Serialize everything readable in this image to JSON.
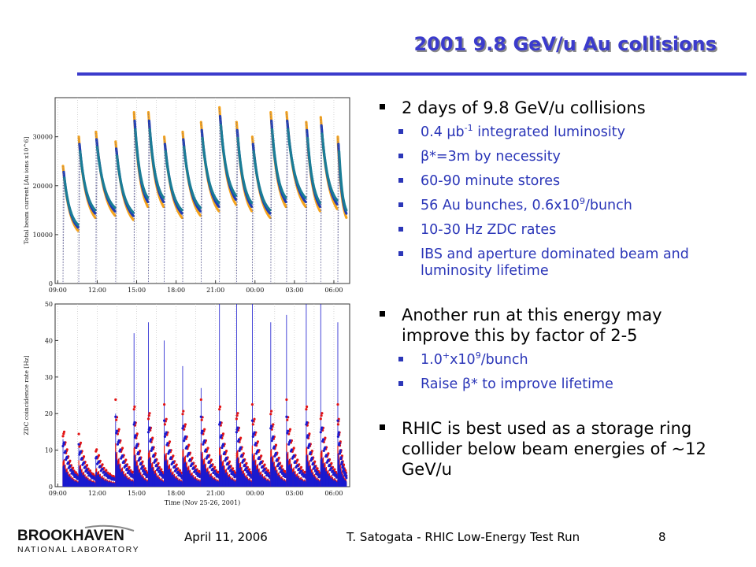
{
  "slide": {
    "title": "2001 9.8 GeV/u Au collisions",
    "date": "April 11, 2006",
    "presenter": "T. Satogata - RHIC Low-Energy Test Run",
    "page": "8",
    "logo_top": "BROOKHAVEN",
    "logo_bottom": "NATIONAL LABORATORY",
    "colors": {
      "title": "#3b3bcc",
      "rule": "#3b3bcc",
      "subbullet": "#2b36b8"
    }
  },
  "bullets": [
    {
      "text": "2 days of 9.8 GeV/u collisions",
      "sub": [
        {
          "pre": "0.4 ",
          "sym": "μ",
          "mid": "b",
          "sup": "-1",
          "post": " integrated luminosity"
        },
        {
          "pre": "",
          "sym": "β",
          "mid": "*=3m by necessity",
          "sup": "",
          "post": ""
        },
        {
          "pre": "60-90 minute stores",
          "sym": "",
          "mid": "",
          "sup": "",
          "post": ""
        },
        {
          "pre": "56 Au bunches, 0.6x10",
          "sym": "",
          "mid": "",
          "sup": "9",
          "post": "/bunch"
        },
        {
          "pre": "10-30 Hz ZDC rates",
          "sym": "",
          "mid": "",
          "sup": "",
          "post": ""
        },
        {
          "pre": "IBS and aperture dominated beam and luminosity lifetime",
          "sym": "",
          "mid": "",
          "sup": "",
          "post": ""
        }
      ]
    },
    {
      "text": "Another run at this energy may improve this by factor of 2-5",
      "sub": [
        {
          "pre": "1.0",
          "sym": "",
          "mid": "",
          "sup": "+",
          "post": "x10",
          "sup2": "9",
          "post2": "/bunch"
        },
        {
          "pre": "Raise ",
          "sym": "β",
          "mid": "* to improve lifetime",
          "sup": "",
          "post": ""
        }
      ]
    },
    {
      "text": "RHIC is best used as a storage ring collider below beam energies of ~12 GeV/u",
      "sub": []
    }
  ],
  "chart_data": [
    {
      "type": "line",
      "ylabel": "Total beam current [Au ions x10^6]",
      "xlabel": "",
      "x_ticks": [
        "09:00",
        "12:00",
        "15:00",
        "18:00",
        "21:00",
        "00:00",
        "03:00",
        "06:00"
      ],
      "y_ticks": [
        0,
        10000,
        20000,
        30000
      ],
      "ylim": [
        0,
        38000
      ],
      "grid": "dotted vertical",
      "store_times_hours": [
        9.4,
        10.6,
        11.9,
        13.4,
        14.8,
        15.9,
        17.1,
        18.5,
        19.9,
        21.3,
        22.6,
        23.8,
        25.2,
        26.4,
        27.9,
        29.0,
        30.3
      ],
      "store_peaks": [
        24000,
        30000,
        31000,
        29000,
        35000,
        35000,
        30000,
        31000,
        33000,
        36000,
        33000,
        30000,
        35000,
        35000,
        33000,
        34000,
        30000
      ],
      "series": [
        {
          "color": "#f5a31c"
        },
        {
          "color": "#1f3db5"
        },
        {
          "color": "#1a7d96"
        }
      ]
    },
    {
      "type": "scatter",
      "ylabel": "ZDC coincidence rate [Hz]",
      "xlabel": "Time (Nov 25-26, 2001)",
      "x_ticks": [
        "09:00",
        "12:00",
        "15:00",
        "18:00",
        "21:00",
        "00:00",
        "03:00",
        "06:00"
      ],
      "y_ticks": [
        0,
        10,
        20,
        30,
        40,
        50
      ],
      "ylim": [
        0,
        50
      ],
      "grid": "dotted vertical",
      "store_times_hours": [
        9.4,
        10.6,
        11.9,
        13.4,
        14.8,
        15.9,
        17.1,
        18.5,
        19.9,
        21.3,
        22.6,
        23.8,
        25.2,
        26.4,
        27.9,
        29.0,
        30.3
      ],
      "store_peaks_hz": [
        13,
        11,
        8,
        20,
        42,
        45,
        40,
        33,
        27,
        50,
        50,
        50,
        45,
        47,
        50,
        50,
        45
      ],
      "series": [
        {
          "color": "#e31414"
        },
        {
          "color": "#1a1acf"
        }
      ]
    }
  ]
}
